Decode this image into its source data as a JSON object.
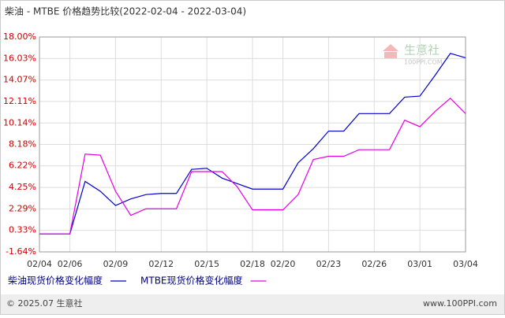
{
  "chart_data": {
    "type": "line",
    "title": "柴油 - MTBE 价格趋势比较(2022-02-04 - 2022-03-04)",
    "categories": [
      "02/04",
      null,
      "02/06",
      null,
      null,
      "02/09",
      null,
      null,
      "02/12",
      null,
      null,
      "02/15",
      null,
      null,
      "02/18",
      null,
      "02/20",
      null,
      null,
      "02/23",
      null,
      null,
      "02/26",
      null,
      null,
      "03/01",
      null,
      null,
      "03/04"
    ],
    "series": [
      {
        "name": "柴油现货价格变化幅度",
        "color": "#0000cc",
        "values": [
          0,
          0,
          0,
          4.8,
          3.9,
          2.6,
          3.2,
          3.6,
          3.7,
          3.7,
          5.9,
          6.0,
          5.1,
          4.6,
          4.1,
          4.1,
          4.1,
          6.5,
          7.8,
          9.4,
          9.4,
          11.0,
          11.0,
          11.0,
          12.5,
          12.6,
          14.5,
          16.5,
          16.1
        ]
      },
      {
        "name": "MTBE现货价格变化幅度",
        "color": "#e600e6",
        "values": [
          0,
          0,
          0,
          7.3,
          7.2,
          3.9,
          1.7,
          2.3,
          2.3,
          2.3,
          5.7,
          5.7,
          5.7,
          4.3,
          2.2,
          2.2,
          2.2,
          3.6,
          6.8,
          7.1,
          7.1,
          7.7,
          7.7,
          7.7,
          10.4,
          9.8,
          11.2,
          12.4,
          11.0
        ]
      }
    ],
    "ylim": [
      -1.64,
      18
    ],
    "yticks": [
      {
        "value": -1.64,
        "label": "-1.64%"
      },
      {
        "value": 0.33,
        "label": "0.33%"
      },
      {
        "value": 2.29,
        "label": "2.29%"
      },
      {
        "value": 4.25,
        "label": "4.25%"
      },
      {
        "value": 6.22,
        "label": "6.22%"
      },
      {
        "value": 8.18,
        "label": "8.18%"
      },
      {
        "value": 10.14,
        "label": "10.14%"
      },
      {
        "value": 12.11,
        "label": "12.11%"
      },
      {
        "value": 14.07,
        "label": "14.07%"
      },
      {
        "value": 16.03,
        "label": "16.03%"
      },
      {
        "value": 18,
        "label": "18.00%"
      }
    ],
    "grid": true,
    "watermark": {
      "name": "生意社",
      "site": "100PPI.COM"
    },
    "footer": {
      "left": "© 2025.07 生意社",
      "right": "www.100PPI.com"
    }
  }
}
